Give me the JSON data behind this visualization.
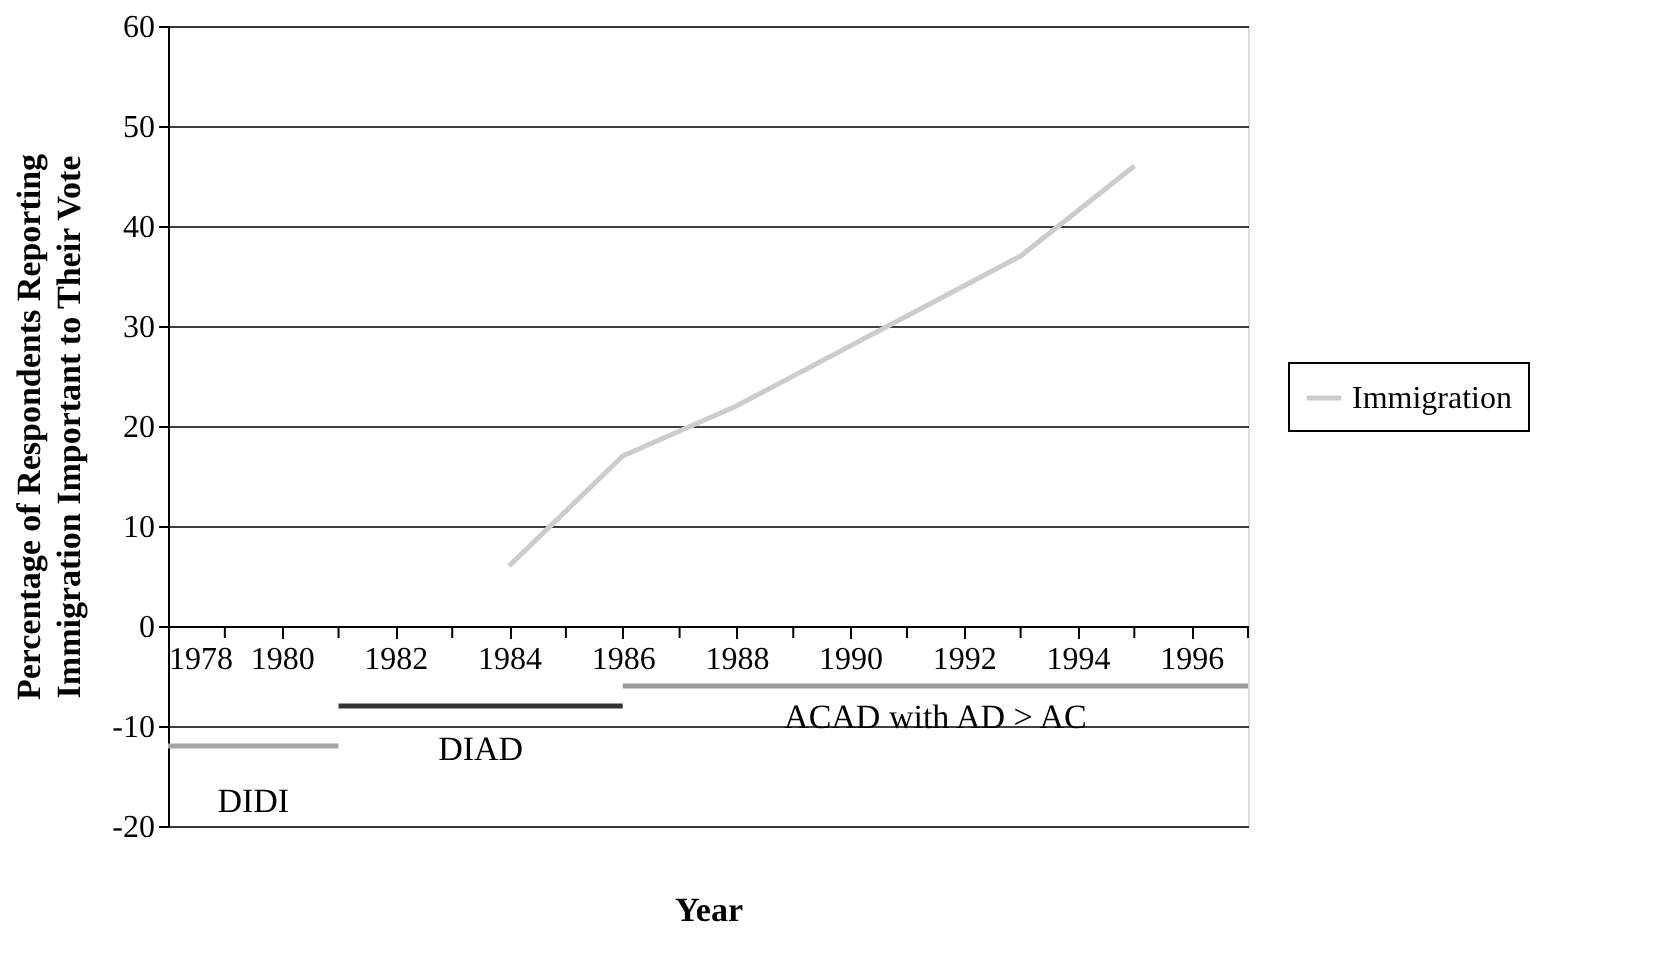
{
  "chart_data": {
    "type": "line",
    "xlabel": "Year",
    "ylabel": "Percentage of Respondents Reporting Immigration Important to Their Vote",
    "xlim": [
      1978,
      1997
    ],
    "ylim": [
      -20,
      60
    ],
    "xticks": [
      1978,
      {
        "value": 1979,
        "label": null
      },
      1980,
      {
        "value": 1981,
        "label": null
      },
      1982,
      {
        "value": 1983,
        "label": null
      },
      1984,
      {
        "value": 1985,
        "label": null
      },
      1986,
      {
        "value": 1987,
        "label": null
      },
      1988,
      {
        "value": 1989,
        "label": null
      },
      1990,
      {
        "value": 1991,
        "label": null
      },
      1992,
      {
        "value": 1993,
        "label": null
      },
      1994,
      {
        "value": 1995,
        "label": null
      },
      1996,
      {
        "value": 1997,
        "label": null
      }
    ],
    "yticks": [
      -20,
      -10,
      0,
      10,
      20,
      30,
      40,
      50,
      60
    ],
    "grid": "y",
    "legend": "right",
    "series": [
      {
        "name": "Immigration",
        "color": "#cccccc",
        "x": [
          1984,
          1986,
          1988,
          1993,
          1995
        ],
        "values": [
          6,
          17,
          22,
          37,
          46
        ]
      },
      {
        "color": "#a6a6a6",
        "x": [
          1978,
          1981
        ],
        "values": [
          -12,
          -12
        ]
      },
      {
        "color": "#333333",
        "x": [
          1981,
          1986
        ],
        "values": [
          -8,
          -8
        ]
      },
      {
        "color": "#999999",
        "x": [
          1986,
          1997
        ],
        "values": [
          -6,
          -6
        ]
      }
    ],
    "annotations": [
      "DIDI",
      "DIAD",
      "ACAD with AD > AC"
    ]
  }
}
